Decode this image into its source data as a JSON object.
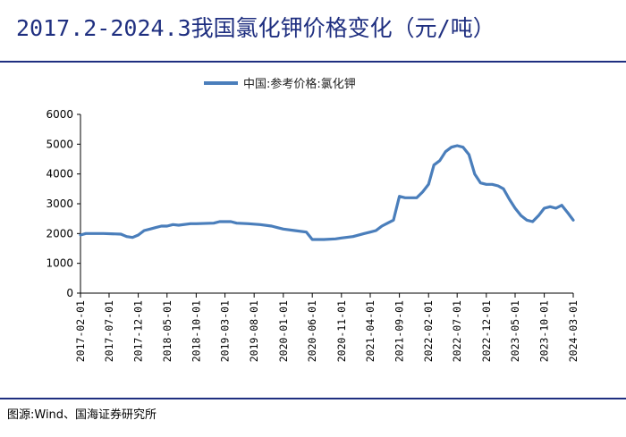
{
  "header": {
    "title": "2017.2-2024.3我国氯化钾价格变化（元/吨）"
  },
  "footer": {
    "source": "图源:Wind、国海证券研究所"
  },
  "colors": {
    "title": "#1f2f80",
    "series": "#4a7ebb",
    "axis": "#000000"
  },
  "chart_data": {
    "type": "line",
    "title": "2017.2-2024.3我国氯化钾价格变化（元/吨）",
    "xlabel": "",
    "ylabel": "",
    "ylim": [
      0,
      6000
    ],
    "yticks": [
      "0",
      "1000",
      "2000",
      "3000",
      "4000",
      "5000",
      "6000"
    ],
    "xticks": [
      "2017-02-01",
      "2017-07-01",
      "2017-12-01",
      "2018-05-01",
      "2018-10-01",
      "2019-03-01",
      "2019-08-01",
      "2020-01-01",
      "2020-06-01",
      "2020-11-01",
      "2021-04-01",
      "2021-09-01",
      "2022-02-01",
      "2022-07-01",
      "2022-12-01",
      "2023-05-01",
      "2023-10-01",
      "2024-03-01"
    ],
    "xlim": [
      "2017-02-01",
      "2024-03-01"
    ],
    "grid": false,
    "legend_position": "top-center",
    "series": [
      {
        "name": "中国:参考价格:氯化钾",
        "x": [
          "2017-02-01",
          "2017-03-01",
          "2017-06-01",
          "2017-09-01",
          "2017-10-01",
          "2017-11-01",
          "2017-12-01",
          "2018-01-01",
          "2018-02-01",
          "2018-03-01",
          "2018-04-01",
          "2018-05-01",
          "2018-06-01",
          "2018-07-01",
          "2018-09-01",
          "2018-10-01",
          "2019-01-01",
          "2019-02-01",
          "2019-04-01",
          "2019-05-01",
          "2019-07-01",
          "2019-09-01",
          "2019-11-01",
          "2019-12-01",
          "2020-01-01",
          "2020-03-01",
          "2020-05-01",
          "2020-06-01",
          "2020-08-01",
          "2020-10-01",
          "2020-11-01",
          "2021-01-01",
          "2021-03-01",
          "2021-04-01",
          "2021-05-01",
          "2021-06-01",
          "2021-07-01",
          "2021-08-01",
          "2021-09-01",
          "2021-10-01",
          "2021-11-01",
          "2021-12-01",
          "2022-01-01",
          "2022-02-01",
          "2022-03-01",
          "2022-04-01",
          "2022-05-01",
          "2022-06-01",
          "2022-07-01",
          "2022-08-01",
          "2022-09-01",
          "2022-10-01",
          "2022-11-01",
          "2022-12-01",
          "2023-01-01",
          "2023-02-01",
          "2023-03-01",
          "2023-04-01",
          "2023-05-01",
          "2023-06-01",
          "2023-07-01",
          "2023-08-01",
          "2023-09-01",
          "2023-10-01",
          "2023-11-01",
          "2023-12-01",
          "2024-01-01",
          "2024-02-01",
          "2024-03-01"
        ],
        "y": [
          1950,
          2000,
          2000,
          1980,
          1900,
          1870,
          1950,
          2100,
          2150,
          2200,
          2250,
          2250,
          2300,
          2280,
          2330,
          2330,
          2350,
          2400,
          2400,
          2350,
          2330,
          2300,
          2250,
          2200,
          2150,
          2100,
          2050,
          1800,
          1800,
          1820,
          1850,
          1900,
          2000,
          2050,
          2100,
          2250,
          2350,
          2450,
          3250,
          3200,
          3200,
          3200,
          3400,
          3650,
          4300,
          4450,
          4750,
          4900,
          4950,
          4900,
          4650,
          4000,
          3700,
          3650,
          3650,
          3600,
          3500,
          3150,
          2850,
          2600,
          2450,
          2400,
          2600,
          2850,
          2900,
          2850,
          2950,
          2700,
          2450
        ]
      }
    ]
  }
}
